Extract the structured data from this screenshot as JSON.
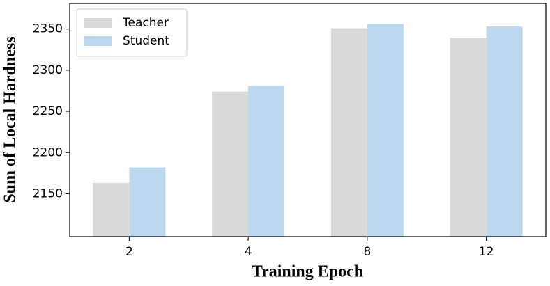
{
  "chart_data": {
    "type": "bar",
    "xlabel": "Training Epoch",
    "ylabel": "Sum of Local Hardness",
    "categories": [
      "2",
      "4",
      "8",
      "12"
    ],
    "series": [
      {
        "name": "Teacher",
        "color": "#d9d9d9",
        "values": [
          2163,
          2274,
          2351,
          2339
        ]
      },
      {
        "name": "Student",
        "color": "#bdd7ee",
        "values": [
          2182,
          2281,
          2356,
          2353
        ]
      }
    ],
    "ylim": [
      2098,
      2381
    ],
    "yticks": [
      2150,
      2200,
      2250,
      2300,
      2350
    ],
    "legend": "upper left"
  }
}
